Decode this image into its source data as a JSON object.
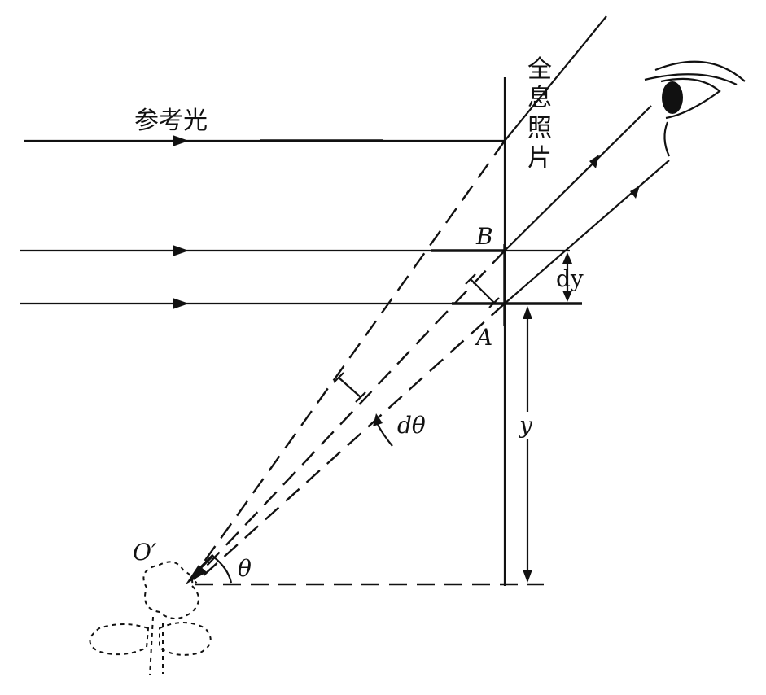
{
  "labels": {
    "reference_light": "参考光",
    "hologram": [
      "全",
      "息",
      "照",
      "片"
    ],
    "point_b": "B",
    "point_a": "A",
    "dy": "dy",
    "y": "y",
    "d_theta": "dθ",
    "theta": "θ",
    "image_point": "O′"
  },
  "icons": {
    "eye": "eye-icon",
    "object": "flower-object-icon"
  }
}
